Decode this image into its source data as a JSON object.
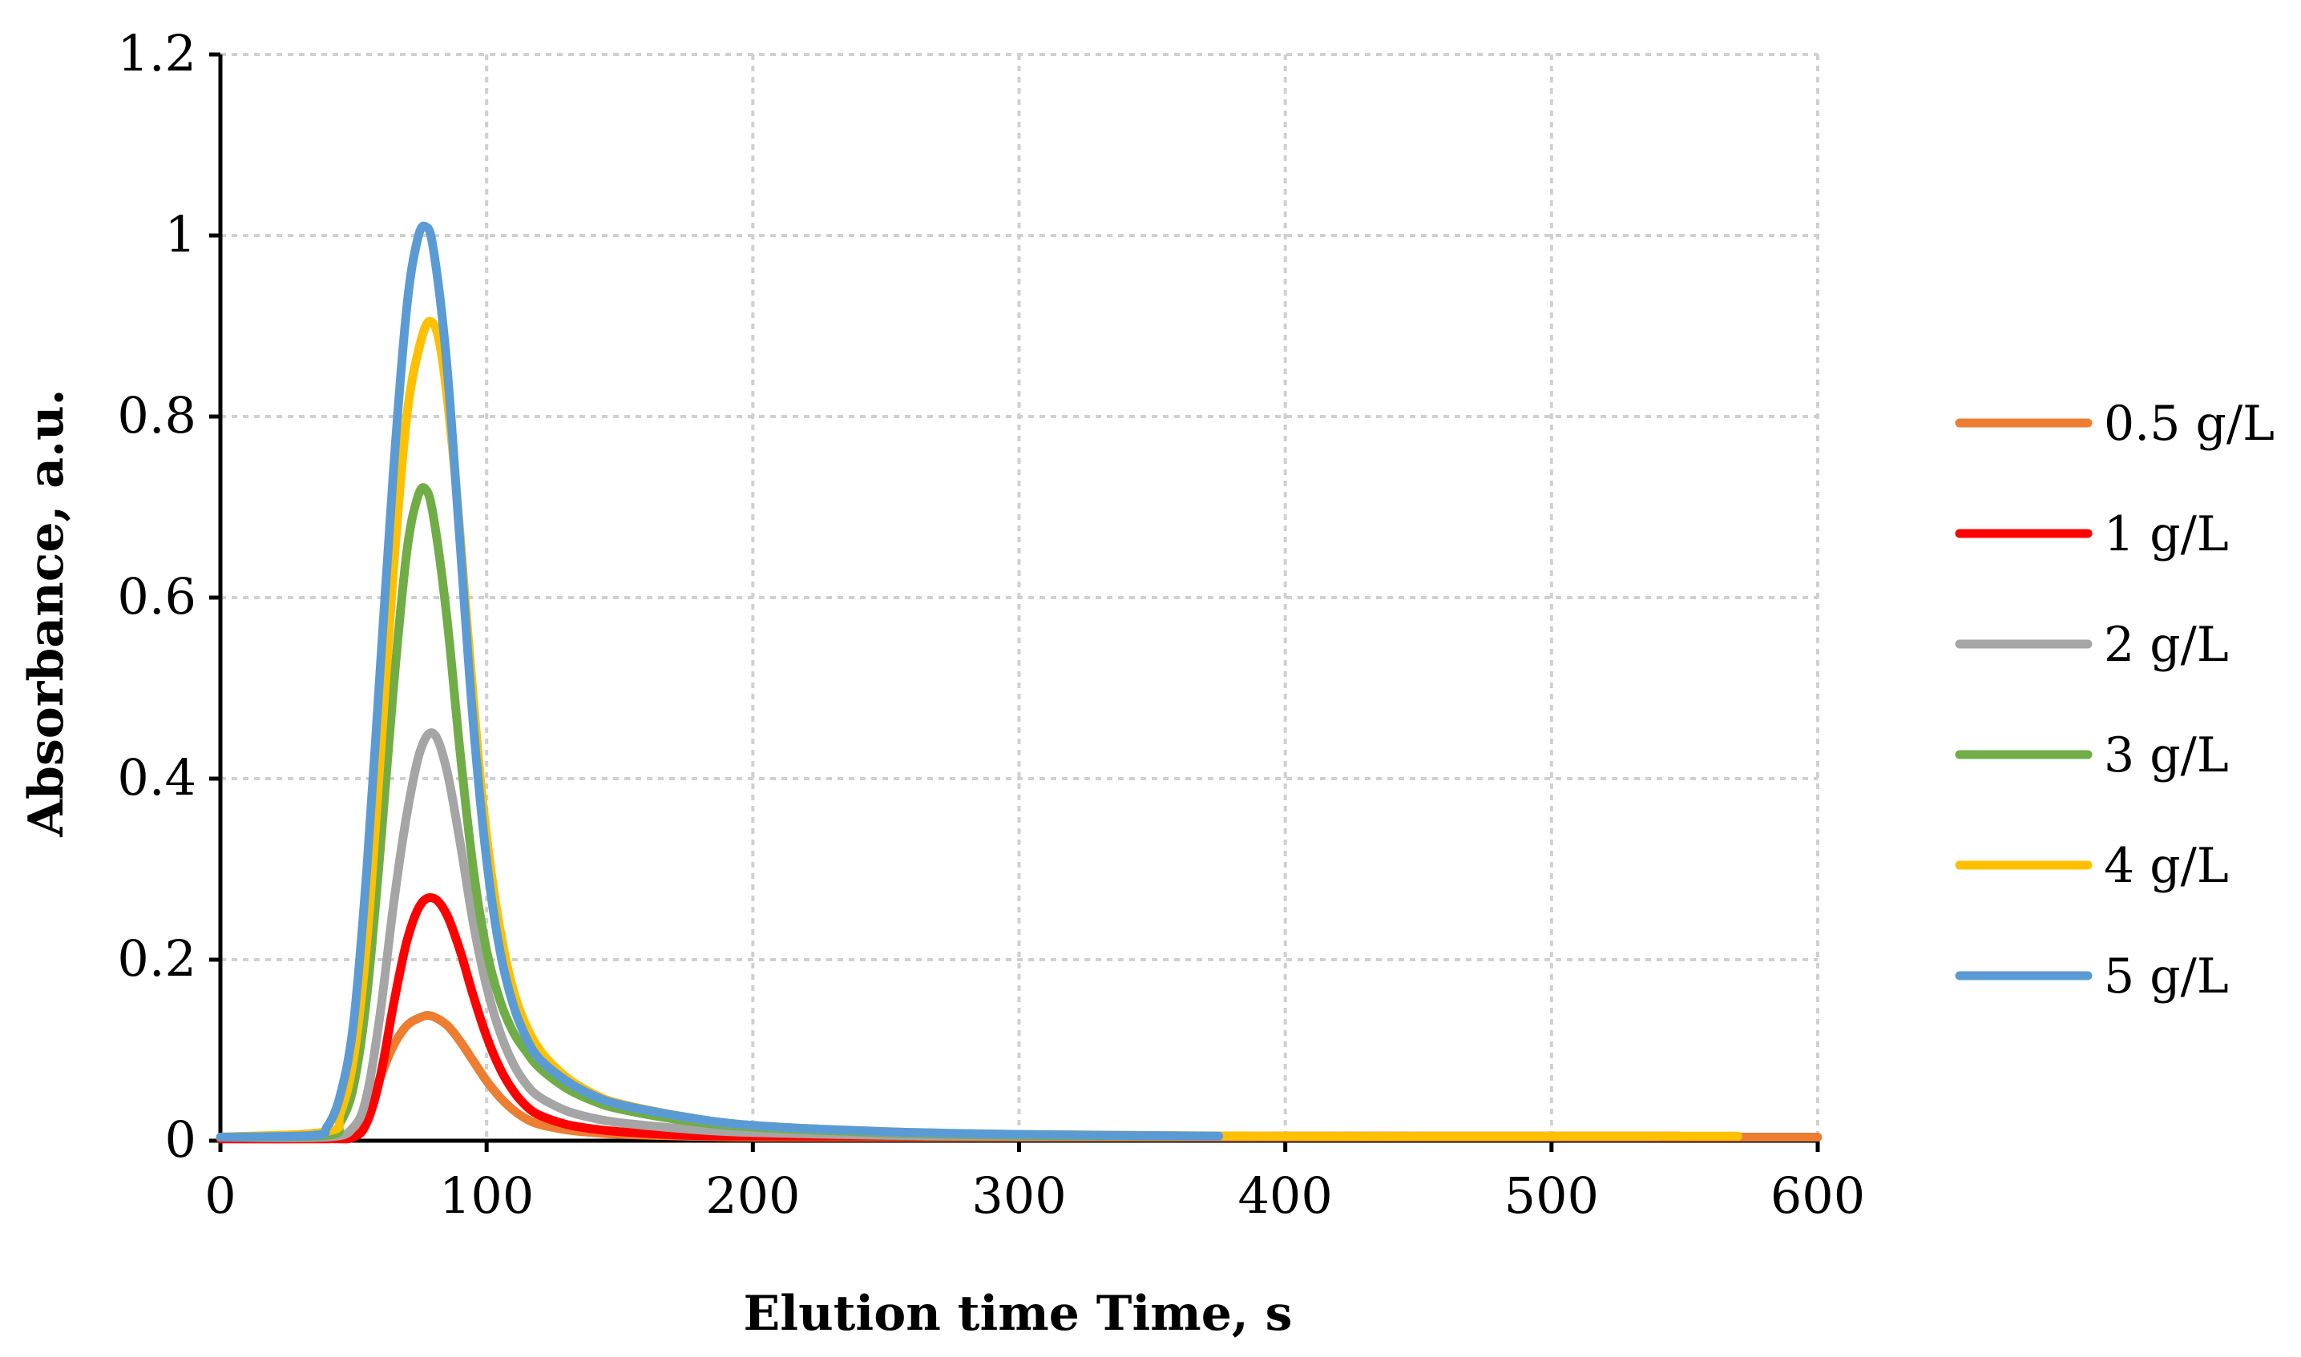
{
  "chart_data": {
    "type": "line",
    "title": "",
    "xlabel": "Elution time Time, s",
    "ylabel": "Absorbance, a.u.",
    "xlim": [
      0,
      600
    ],
    "ylim": [
      0,
      1.2
    ],
    "x_ticks": [
      0,
      100,
      200,
      300,
      400,
      500,
      600
    ],
    "y_ticks": [
      0,
      0.2,
      0.4,
      0.6,
      0.8,
      1.0,
      1.2
    ],
    "x_tick_labels": [
      "0",
      "100",
      "200",
      "300",
      "400",
      "500",
      "600"
    ],
    "y_tick_labels": [
      "0",
      "0.2",
      "0.4",
      "0.6",
      "0.8",
      "1",
      "1.2"
    ],
    "grid": true,
    "legend_position": "right",
    "series": [
      {
        "name": "0.5 g/L",
        "color": "#ED7D31",
        "x": [
          0,
          40,
          50,
          55,
          60,
          65,
          70,
          75,
          79,
          85,
          90,
          95,
          100,
          105,
          110,
          115,
          120,
          130,
          140,
          150,
          175,
          200,
          250,
          300,
          400,
          500,
          600
        ],
        "y": [
          0.004,
          0.004,
          0.01,
          0.03,
          0.07,
          0.105,
          0.127,
          0.136,
          0.138,
          0.128,
          0.11,
          0.088,
          0.066,
          0.048,
          0.034,
          0.024,
          0.018,
          0.012,
          0.009,
          0.007,
          0.005,
          0.004,
          0.004,
          0.004,
          0.004,
          0.004,
          0.004
        ]
      },
      {
        "name": "1 g/L",
        "color": "#FF0000",
        "x": [
          0,
          40,
          50,
          55,
          60,
          65,
          70,
          75,
          80,
          85,
          90,
          95,
          100,
          105,
          110,
          115,
          120,
          130,
          140,
          150,
          175,
          200,
          250,
          300,
          400,
          500,
          548
        ],
        "y": [
          0.002,
          0.002,
          0.004,
          0.02,
          0.07,
          0.15,
          0.22,
          0.26,
          0.268,
          0.25,
          0.21,
          0.16,
          0.115,
          0.08,
          0.055,
          0.038,
          0.028,
          0.018,
          0.013,
          0.01,
          0.006,
          0.005,
          0.005,
          0.005,
          0.005,
          0.005,
          0.005
        ]
      },
      {
        "name": "2 g/L",
        "color": "#A5A5A5",
        "x": [
          0,
          40,
          50,
          55,
          60,
          65,
          70,
          75,
          80,
          85,
          90,
          95,
          100,
          105,
          110,
          115,
          120,
          130,
          140,
          150,
          175,
          200,
          250,
          300,
          400,
          500,
          540
        ],
        "y": [
          0.004,
          0.004,
          0.015,
          0.05,
          0.14,
          0.26,
          0.36,
          0.43,
          0.45,
          0.41,
          0.33,
          0.24,
          0.17,
          0.12,
          0.085,
          0.062,
          0.048,
          0.033,
          0.025,
          0.02,
          0.013,
          0.009,
          0.006,
          0.005,
          0.005,
          0.005,
          0.005
        ]
      },
      {
        "name": "3 g/L",
        "color": "#70AD47",
        "x": [
          0,
          40,
          45,
          50,
          55,
          60,
          65,
          70,
          74,
          77,
          80,
          85,
          90,
          95,
          100,
          105,
          110,
          115,
          120,
          130,
          140,
          150,
          175,
          200,
          250,
          300,
          360
        ],
        "y": [
          0.004,
          0.006,
          0.02,
          0.06,
          0.16,
          0.32,
          0.5,
          0.65,
          0.71,
          0.72,
          0.69,
          0.58,
          0.43,
          0.3,
          0.21,
          0.155,
          0.12,
          0.098,
          0.08,
          0.058,
          0.044,
          0.035,
          0.022,
          0.015,
          0.009,
          0.006,
          0.005
        ]
      },
      {
        "name": "4 g/L",
        "color": "#FFC000",
        "x": [
          0,
          40,
          45,
          50,
          55,
          60,
          65,
          70,
          75,
          79,
          83,
          88,
          93,
          98,
          103,
          108,
          113,
          120,
          130,
          140,
          150,
          175,
          200,
          250,
          300,
          400,
          500,
          570
        ],
        "y": [
          0.004,
          0.01,
          0.03,
          0.09,
          0.22,
          0.42,
          0.63,
          0.8,
          0.88,
          0.905,
          0.87,
          0.74,
          0.56,
          0.39,
          0.27,
          0.19,
          0.14,
          0.1,
          0.07,
          0.052,
          0.041,
          0.026,
          0.017,
          0.01,
          0.007,
          0.005,
          0.005,
          0.005
        ]
      },
      {
        "name": "5 g/L",
        "color": "#5B9BD5",
        "x": [
          0,
          35,
          40,
          45,
          50,
          55,
          60,
          65,
          70,
          74,
          77,
          80,
          85,
          90,
          95,
          100,
          105,
          110,
          115,
          120,
          130,
          140,
          150,
          175,
          200,
          250,
          300,
          375
        ],
        "y": [
          0.004,
          0.006,
          0.015,
          0.05,
          0.13,
          0.3,
          0.52,
          0.74,
          0.92,
          0.995,
          1.01,
          0.985,
          0.86,
          0.66,
          0.46,
          0.31,
          0.21,
          0.15,
          0.113,
          0.09,
          0.066,
          0.05,
          0.04,
          0.026,
          0.017,
          0.01,
          0.007,
          0.005
        ]
      }
    ]
  }
}
